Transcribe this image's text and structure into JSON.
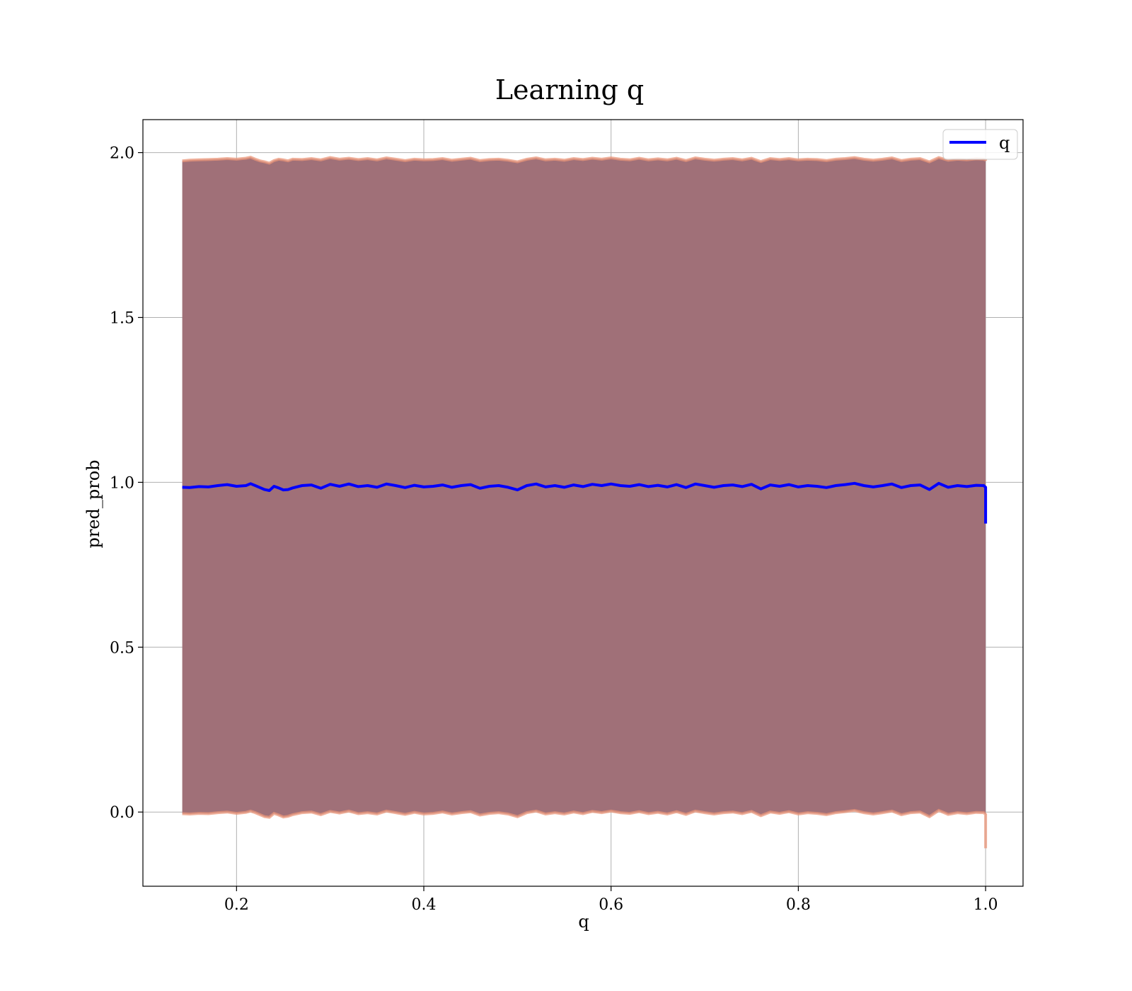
{
  "chart_data": {
    "type": "line",
    "title": "Learning q",
    "xlabel": "q",
    "ylabel": "pred_prob",
    "xlim": [
      0.1,
      1.04
    ],
    "ylim": [
      -0.225,
      2.1
    ],
    "xticks": [
      0.2,
      0.4,
      0.6,
      0.8,
      1.0
    ],
    "xtick_labels": [
      "0.2",
      "0.4",
      "0.6",
      "0.8",
      "1.0"
    ],
    "yticks": [
      0.0,
      0.5,
      1.0,
      1.5,
      2.0
    ],
    "ytick_labels": [
      "0.0",
      "0.5",
      "1.0",
      "1.5",
      "2.0"
    ],
    "grid": true,
    "legend": {
      "placement": "top-right",
      "entries": [
        {
          "label": "q",
          "color": "#0000ff"
        }
      ]
    },
    "series": [
      {
        "name": "q",
        "color": "#0000ff",
        "x": [
          0.142,
          0.15,
          0.16,
          0.17,
          0.18,
          0.19,
          0.2,
          0.21,
          0.215,
          0.22,
          0.225,
          0.23,
          0.235,
          0.24,
          0.245,
          0.25,
          0.255,
          0.26,
          0.27,
          0.28,
          0.29,
          0.3,
          0.31,
          0.32,
          0.33,
          0.34,
          0.35,
          0.36,
          0.37,
          0.38,
          0.39,
          0.4,
          0.41,
          0.42,
          0.43,
          0.44,
          0.45,
          0.46,
          0.47,
          0.48,
          0.49,
          0.5,
          0.51,
          0.52,
          0.53,
          0.54,
          0.55,
          0.56,
          0.57,
          0.58,
          0.59,
          0.6,
          0.61,
          0.62,
          0.63,
          0.64,
          0.65,
          0.66,
          0.67,
          0.68,
          0.69,
          0.7,
          0.71,
          0.72,
          0.73,
          0.74,
          0.75,
          0.76,
          0.77,
          0.78,
          0.79,
          0.8,
          0.81,
          0.82,
          0.83,
          0.84,
          0.85,
          0.86,
          0.87,
          0.88,
          0.89,
          0.9,
          0.91,
          0.92,
          0.93,
          0.94,
          0.95,
          0.96,
          0.97,
          0.98,
          0.99,
          0.998,
          1.0,
          1.0
        ],
        "values": [
          0.985,
          0.984,
          0.987,
          0.986,
          0.99,
          0.993,
          0.988,
          0.99,
          0.996,
          0.99,
          0.984,
          0.978,
          0.975,
          0.988,
          0.983,
          0.977,
          0.978,
          0.983,
          0.99,
          0.992,
          0.982,
          0.994,
          0.988,
          0.995,
          0.987,
          0.99,
          0.985,
          0.995,
          0.99,
          0.984,
          0.991,
          0.986,
          0.988,
          0.992,
          0.985,
          0.99,
          0.993,
          0.982,
          0.988,
          0.99,
          0.985,
          0.977,
          0.99,
          0.995,
          0.986,
          0.99,
          0.985,
          0.992,
          0.987,
          0.994,
          0.99,
          0.995,
          0.99,
          0.988,
          0.993,
          0.987,
          0.991,
          0.986,
          0.993,
          0.984,
          0.995,
          0.99,
          0.985,
          0.99,
          0.992,
          0.987,
          0.994,
          0.98,
          0.992,
          0.988,
          0.993,
          0.986,
          0.99,
          0.988,
          0.984,
          0.99,
          0.993,
          0.997,
          0.99,
          0.986,
          0.99,
          0.995,
          0.984,
          0.99,
          0.992,
          0.978,
          0.997,
          0.985,
          0.99,
          0.987,
          0.991,
          0.99,
          0.985,
          0.875
        ]
      }
    ],
    "band": {
      "color": "#a07078",
      "edge_color": "#e9967a",
      "upper": [
        1.975,
        1.977,
        1.978,
        1.979,
        1.98,
        1.982,
        1.98,
        1.983,
        1.986,
        1.98,
        1.975,
        1.972,
        1.968,
        1.976,
        1.98,
        1.978,
        1.975,
        1.98,
        1.979,
        1.982,
        1.978,
        1.985,
        1.98,
        1.983,
        1.979,
        1.982,
        1.978,
        1.984,
        1.98,
        1.976,
        1.98,
        1.978,
        1.979,
        1.982,
        1.977,
        1.98,
        1.983,
        1.976,
        1.979,
        1.98,
        1.977,
        1.972,
        1.98,
        1.984,
        1.978,
        1.98,
        1.977,
        1.982,
        1.979,
        1.983,
        1.98,
        1.984,
        1.98,
        1.978,
        1.983,
        1.978,
        1.981,
        1.978,
        1.983,
        1.976,
        1.984,
        1.98,
        1.977,
        1.98,
        1.982,
        1.978,
        1.983,
        1.973,
        1.982,
        1.979,
        1.982,
        1.978,
        1.98,
        1.979,
        1.976,
        1.98,
        1.982,
        1.985,
        1.98,
        1.977,
        1.98,
        1.984,
        1.976,
        1.98,
        1.982,
        1.972,
        1.985,
        1.977,
        1.98,
        1.978,
        1.981,
        1.98,
        1.977,
        1.975
      ],
      "lower": [
        -0.005,
        -0.006,
        -0.004,
        -0.005,
        -0.002,
        0.0,
        -0.004,
        -0.001,
        0.003,
        -0.002,
        -0.008,
        -0.014,
        -0.016,
        -0.004,
        -0.009,
        -0.015,
        -0.013,
        -0.008,
        -0.002,
        0.0,
        -0.008,
        0.002,
        -0.003,
        0.003,
        -0.005,
        -0.002,
        -0.006,
        0.003,
        -0.002,
        -0.007,
        -0.001,
        -0.006,
        -0.004,
        0.0,
        -0.006,
        -0.002,
        0.001,
        -0.009,
        -0.004,
        -0.002,
        -0.006,
        -0.014,
        -0.002,
        0.003,
        -0.006,
        -0.002,
        -0.006,
        0.0,
        -0.005,
        0.002,
        -0.002,
        0.003,
        -0.002,
        -0.004,
        0.001,
        -0.005,
        -0.001,
        -0.006,
        0.001,
        -0.007,
        0.003,
        -0.002,
        -0.006,
        -0.002,
        0.0,
        -0.005,
        0.002,
        -0.011,
        0.0,
        -0.004,
        0.001,
        -0.006,
        -0.002,
        -0.004,
        -0.008,
        -0.002,
        0.001,
        0.005,
        -0.002,
        -0.006,
        -0.002,
        0.003,
        -0.008,
        -0.002,
        0.0,
        -0.014,
        0.005,
        -0.007,
        -0.002,
        -0.005,
        -0.001,
        -0.002,
        -0.007,
        -0.11
      ]
    }
  }
}
